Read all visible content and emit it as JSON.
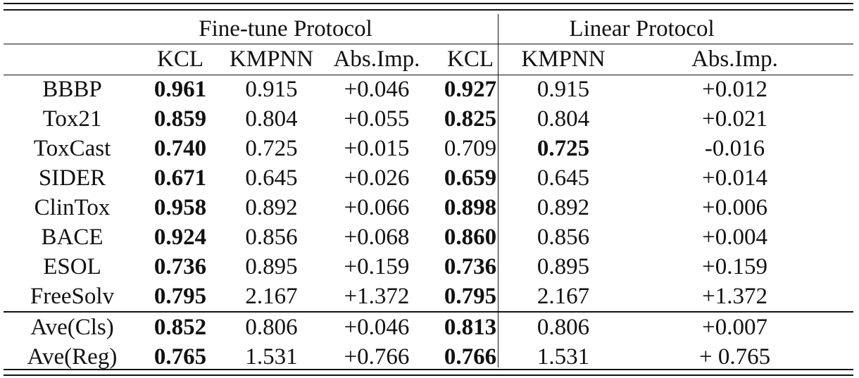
{
  "groups": {
    "finetune": "Fine-tune Protocol",
    "linear": "Linear Protocol"
  },
  "columns": [
    "KCL",
    "KMPNN",
    "Abs.Imp.",
    "KCL",
    "KMPNN",
    "Abs.Imp."
  ],
  "rows": [
    {
      "label": "BBBP",
      "ft_kcl": "0.961",
      "ft_kmpnn": "0.915",
      "ft_imp": "+0.046",
      "lin_kcl": "0.927",
      "lin_kmpnn": "0.915",
      "lin_imp": "+0.012",
      "bold": [
        "ft_kcl",
        "lin_kcl"
      ]
    },
    {
      "label": "Tox21",
      "ft_kcl": "0.859",
      "ft_kmpnn": "0.804",
      "ft_imp": "+0.055",
      "lin_kcl": "0.825",
      "lin_kmpnn": "0.804",
      "lin_imp": "+0.021",
      "bold": [
        "ft_kcl",
        "lin_kcl"
      ]
    },
    {
      "label": "ToxCast",
      "ft_kcl": "0.740",
      "ft_kmpnn": "0.725",
      "ft_imp": "+0.015",
      "lin_kcl": "0.709",
      "lin_kmpnn": "0.725",
      "lin_imp": "-0.016",
      "bold": [
        "ft_kcl",
        "lin_kmpnn"
      ]
    },
    {
      "label": "SIDER",
      "ft_kcl": "0.671",
      "ft_kmpnn": "0.645",
      "ft_imp": "+0.026",
      "lin_kcl": "0.659",
      "lin_kmpnn": "0.645",
      "lin_imp": "+0.014",
      "bold": [
        "ft_kcl",
        "lin_kcl"
      ]
    },
    {
      "label": "ClinTox",
      "ft_kcl": "0.958",
      "ft_kmpnn": "0.892",
      "ft_imp": "+0.066",
      "lin_kcl": "0.898",
      "lin_kmpnn": "0.892",
      "lin_imp": "+0.006",
      "bold": [
        "ft_kcl",
        "lin_kcl"
      ]
    },
    {
      "label": "BACE",
      "ft_kcl": "0.924",
      "ft_kmpnn": "0.856",
      "ft_imp": "+0.068",
      "lin_kcl": "0.860",
      "lin_kmpnn": "0.856",
      "lin_imp": "+0.004",
      "bold": [
        "ft_kcl",
        "lin_kcl"
      ]
    },
    {
      "label": "ESOL",
      "ft_kcl": "0.736",
      "ft_kmpnn": "0.895",
      "ft_imp": "+0.159",
      "lin_kcl": "0.736",
      "lin_kmpnn": "0.895",
      "lin_imp": "+0.159",
      "bold": [
        "ft_kcl",
        "lin_kcl"
      ]
    },
    {
      "label": "FreeSolv",
      "ft_kcl": "0.795",
      "ft_kmpnn": "2.167",
      "ft_imp": "+1.372",
      "lin_kcl": "0.795",
      "lin_kmpnn": "2.167",
      "lin_imp": "+1.372",
      "bold": [
        "ft_kcl",
        "lin_kcl"
      ]
    }
  ],
  "summary_rows": [
    {
      "label": "Ave(Cls)",
      "ft_kcl": "0.852",
      "ft_kmpnn": "0.806",
      "ft_imp": "+0.046",
      "lin_kcl": "0.813",
      "lin_kmpnn": "0.806",
      "lin_imp": "+0.007",
      "bold": [
        "ft_kcl",
        "lin_kcl"
      ]
    },
    {
      "label": "Ave(Reg)",
      "ft_kcl": "0.765",
      "ft_kmpnn": "1.531",
      "ft_imp": "+0.766",
      "lin_kcl": "0.766",
      "lin_kmpnn": "1.531",
      "lin_imp": "+ 0.765",
      "bold": [
        "ft_kcl",
        "lin_kcl"
      ]
    }
  ]
}
